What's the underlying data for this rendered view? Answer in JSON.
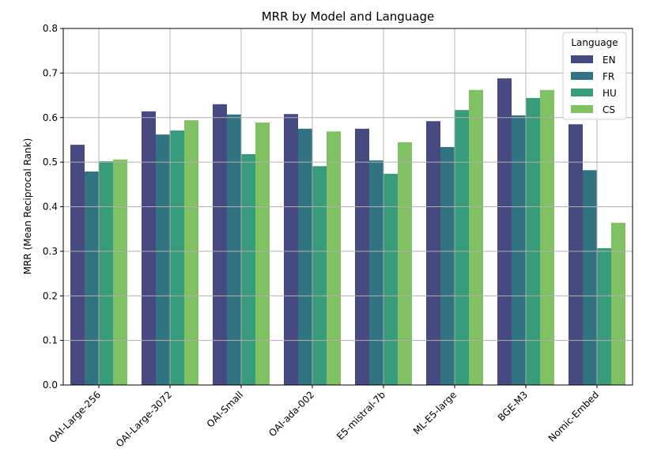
{
  "chart_data": {
    "type": "bar",
    "title": "MRR by Model and Language",
    "xlabel": "",
    "ylabel": "MRR  (Mean Reciprocal Rank)",
    "ylim": [
      0,
      0.8
    ],
    "yticks": [
      "0.0",
      "0.1",
      "0.2",
      "0.3",
      "0.4",
      "0.5",
      "0.6",
      "0.7",
      "0.8"
    ],
    "grid": true,
    "legend": {
      "title": "Language",
      "placement": "top-right"
    },
    "categories": [
      "OAI-Large-256",
      "OAI-Large-3072",
      "OAI-Small",
      "OAI-ada-002",
      "E5-mistral-7b",
      "ML-E5-large",
      "BGE-M3",
      "Nomic-Embed"
    ],
    "series": [
      {
        "name": "EN",
        "color": "#464a80",
        "values": [
          0.539,
          0.614,
          0.63,
          0.608,
          0.575,
          0.592,
          0.688,
          0.585
        ]
      },
      {
        "name": "FR",
        "color": "#317381",
        "values": [
          0.479,
          0.562,
          0.607,
          0.575,
          0.504,
          0.534,
          0.605,
          0.482
        ]
      },
      {
        "name": "HU",
        "color": "#389b7b",
        "values": [
          0.502,
          0.571,
          0.518,
          0.491,
          0.474,
          0.617,
          0.644,
          0.307
        ]
      },
      {
        "name": "CS",
        "color": "#80c163",
        "values": [
          0.506,
          0.594,
          0.589,
          0.569,
          0.545,
          0.662,
          0.662,
          0.364
        ]
      }
    ]
  }
}
